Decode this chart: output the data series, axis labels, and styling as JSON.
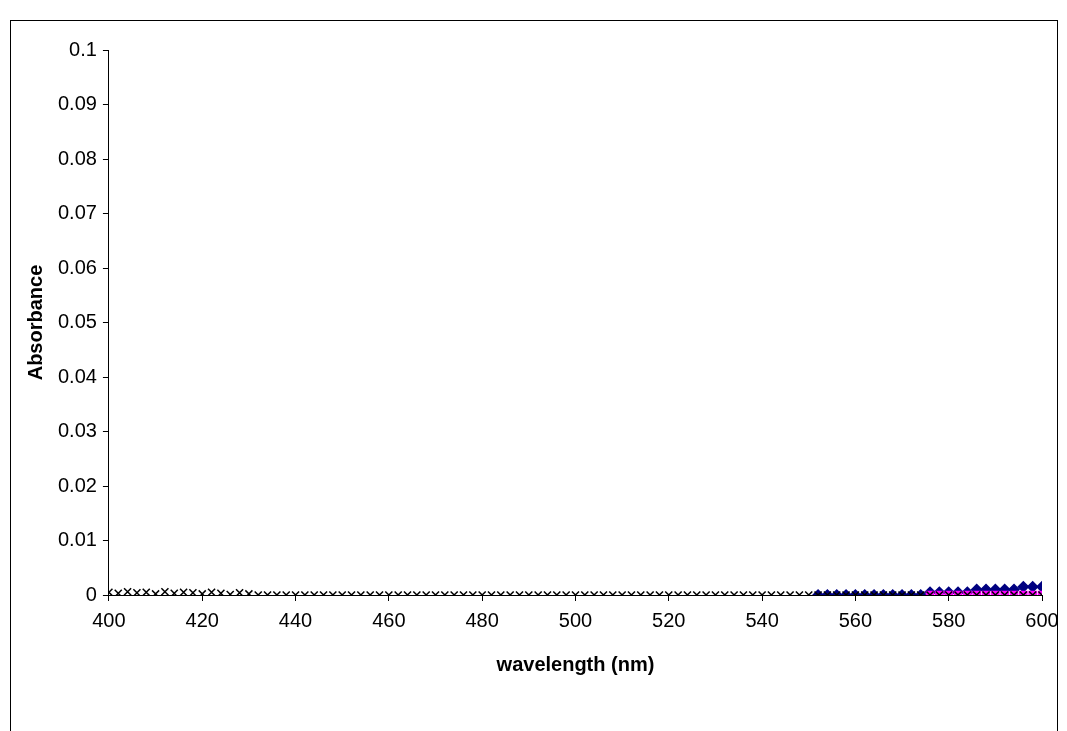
{
  "chart_data": {
    "type": "scatter",
    "xlabel": "wavelength (nm)",
    "ylabel": "Absorbance",
    "xlim": [
      400,
      600
    ],
    "xticks": [
      400,
      420,
      440,
      460,
      480,
      500,
      520,
      540,
      560,
      580,
      600
    ],
    "ylim": [
      0,
      0.1
    ],
    "yticks": [
      0,
      0.01,
      0.02,
      0.03,
      0.04,
      0.05,
      0.06,
      0.07,
      0.08,
      0.09,
      0.1
    ],
    "grid": false,
    "legend": false,
    "series": [
      {
        "color": "#000000",
        "marker": "cross",
        "x": [
          400,
          402,
          404,
          406,
          408,
          410,
          412,
          414,
          416,
          418,
          420,
          422,
          424,
          426,
          428,
          430,
          432,
          434,
          436,
          438,
          440,
          442,
          444,
          446,
          448,
          450,
          452,
          454,
          456,
          458,
          460,
          462,
          464,
          466,
          468,
          470,
          472,
          474,
          476,
          478,
          480,
          482,
          484,
          486,
          488,
          490,
          492,
          494,
          496,
          498,
          500,
          502,
          504,
          506,
          508,
          510,
          512,
          514,
          516,
          518,
          520,
          522,
          524,
          526,
          528,
          530,
          532,
          534,
          536,
          538,
          540,
          542,
          544,
          546,
          548,
          550,
          552,
          554,
          556,
          558,
          560,
          562,
          564,
          566,
          568,
          570,
          572,
          574,
          576,
          578,
          580,
          582,
          584,
          586,
          588,
          590,
          592,
          594,
          596,
          598,
          600
        ],
        "values": [
          0.0005,
          0.0003,
          0.0006,
          0.0004,
          0.0005,
          0.0002,
          0.0006,
          0.0003,
          0.0005,
          0.0004,
          0.0002,
          0.0005,
          0.0003,
          0.0001,
          0.0004,
          0.0002,
          0,
          0,
          0,
          0,
          0,
          0,
          0,
          0,
          0,
          0,
          0,
          0,
          0,
          0,
          0,
          0,
          0,
          0,
          0,
          0,
          0,
          0,
          0,
          0,
          0,
          0,
          0,
          0,
          0,
          0,
          0,
          0,
          0,
          0,
          0,
          0,
          0,
          0,
          0,
          0,
          0,
          0,
          0,
          0,
          0,
          0,
          0,
          0,
          0,
          0,
          0,
          0,
          0,
          0,
          0,
          0,
          0,
          0,
          0,
          0,
          0,
          0,
          0,
          0,
          0,
          0,
          0,
          0,
          0,
          0,
          0,
          0,
          0,
          0,
          0,
          0,
          0,
          0,
          0,
          0,
          0,
          0,
          0,
          0,
          0
        ]
      },
      {
        "color": "#ff00ff",
        "marker": "square",
        "x": [
          576,
          578,
          580,
          582,
          584,
          586,
          588,
          590,
          592,
          594,
          596,
          598,
          600
        ],
        "values": [
          0,
          0,
          0,
          0,
          0,
          0,
          0,
          0,
          0,
          0,
          0,
          0,
          0
        ]
      },
      {
        "color": "#000080",
        "marker": "diamond",
        "x": [
          552,
          554,
          556,
          558,
          560,
          562,
          564,
          566,
          568,
          570,
          572,
          574,
          576,
          578,
          580,
          582,
          584,
          586,
          588,
          590,
          592,
          594,
          596,
          598,
          600
        ],
        "values": [
          0,
          0,
          0,
          0,
          0,
          0,
          0,
          0,
          0,
          0,
          0,
          0,
          0.0005,
          0.0005,
          0.0005,
          0.0005,
          0.0005,
          0.001,
          0.001,
          0.001,
          0.001,
          0.001,
          0.0015,
          0.0015,
          0.0015
        ]
      }
    ]
  }
}
